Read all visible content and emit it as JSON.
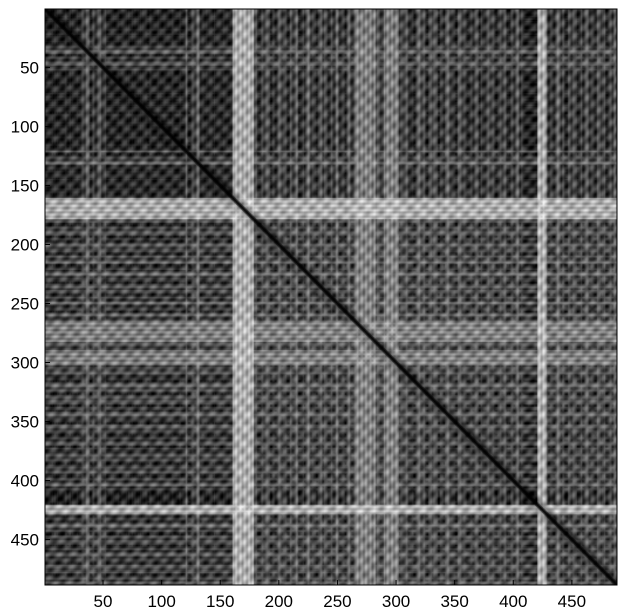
{
  "chart_data": {
    "type": "heatmap",
    "title": "",
    "xlabel": "",
    "ylabel": "",
    "xlim": [
      1,
      488
    ],
    "ylim": [
      1,
      488
    ],
    "y_axis_reversed": true,
    "colormap": "gray",
    "grid": false,
    "x_ticks": [
      50,
      100,
      150,
      200,
      250,
      300,
      350,
      400,
      450
    ],
    "y_ticks": [
      50,
      100,
      150,
      200,
      250,
      300,
      350,
      400,
      450
    ],
    "x_tick_labels": [
      "50",
      "100",
      "150",
      "200",
      "250",
      "300",
      "350",
      "400",
      "450"
    ],
    "y_tick_labels": [
      "50",
      "100",
      "150",
      "200",
      "250",
      "300",
      "350",
      "400",
      "450"
    ],
    "diagonal": "dark (self-similarity minimum along i = j)",
    "light_bands": [
      {
        "start": 135,
        "end": 178,
        "level": "white"
      },
      {
        "start": 265,
        "end": 282,
        "level": "light"
      },
      {
        "start": 290,
        "end": 302,
        "level": "light"
      },
      {
        "start": 410,
        "end": 428,
        "level": "white"
      }
    ],
    "dark_blocks": [
      {
        "start": 1,
        "end": 30,
        "level": "dark"
      },
      {
        "start": 55,
        "end": 120,
        "level": "dark"
      },
      {
        "start": 135,
        "end": 160,
        "level": "dark"
      },
      {
        "start": 410,
        "end": 420,
        "level": "black"
      }
    ],
    "colors": {
      "background": "#ffffff",
      "frame": "#000000",
      "tick_text": "#000000"
    }
  }
}
